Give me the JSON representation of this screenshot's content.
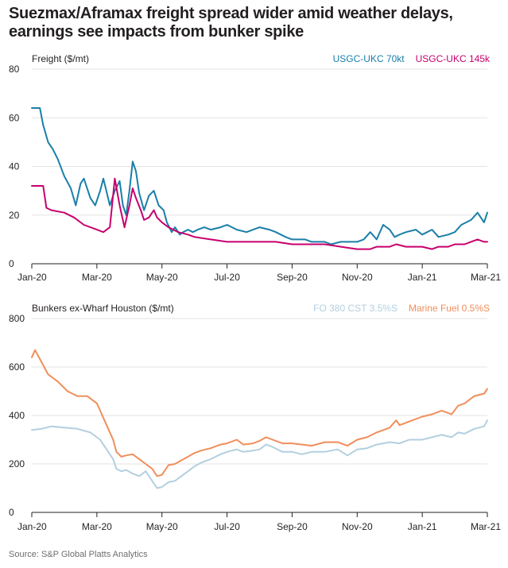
{
  "title_lines": [
    "Suezmax/Aframax freight spread wider amid weather delays,",
    "earnings see impacts from bunker spike"
  ],
  "source": "Source: S&P Global Platts Analytics",
  "chart_data": [
    {
      "type": "line",
      "ylabel": "Freight ($/mt)",
      "ylim": [
        0,
        80
      ],
      "yticks": [
        "0",
        "20",
        "40",
        "60",
        "80"
      ],
      "xlim": [
        0,
        14
      ],
      "xticks": [
        "Jan-20",
        "Mar-20",
        "May-20",
        "Jul-20",
        "Sep-20",
        "Nov-20",
        "Jan-21",
        "Mar-21"
      ],
      "grid": true,
      "legend": "top-right",
      "series": [
        {
          "name": "USGC-UKC  70kt",
          "color": "#1a7fa8",
          "x": [
            0,
            0.25,
            0.35,
            0.5,
            0.65,
            0.8,
            1.0,
            1.2,
            1.35,
            1.5,
            1.6,
            1.8,
            1.95,
            2.1,
            2.2,
            2.4,
            2.55,
            2.7,
            2.8,
            2.9,
            3.0,
            3.1,
            3.2,
            3.3,
            3.45,
            3.6,
            3.75,
            3.9,
            4.05,
            4.15,
            4.3,
            4.4,
            4.55,
            4.65,
            4.8,
            4.95,
            5.1,
            5.3,
            5.5,
            5.8,
            6.0,
            6.3,
            6.6,
            7.0,
            7.3,
            7.5,
            7.8,
            8.0,
            8.2,
            8.4,
            8.6,
            8.8,
            9.0,
            9.2,
            9.5,
            9.8,
            10.0,
            10.2,
            10.4,
            10.6,
            10.8,
            11.0,
            11.15,
            11.3,
            11.5,
            11.8,
            12.0,
            12.3,
            12.5,
            12.8,
            13.0,
            13.2,
            13.5,
            13.7,
            13.9,
            14.0
          ],
          "values": [
            64,
            64,
            57,
            50,
            47,
            43,
            36,
            31,
            24,
            33,
            35,
            27,
            24,
            30,
            35,
            24,
            30,
            34,
            24,
            20,
            30,
            42,
            38,
            29,
            22,
            28,
            30,
            24,
            22,
            17,
            13,
            15,
            12,
            13,
            14,
            13,
            14,
            15,
            14,
            15,
            16,
            14,
            13,
            15,
            14,
            13,
            11,
            10,
            10,
            10,
            9,
            9,
            9,
            8,
            9,
            9,
            9,
            10,
            13,
            10,
            16,
            14,
            11,
            12,
            13,
            14,
            12,
            14,
            11,
            12,
            13,
            16,
            18,
            21,
            17,
            21
          ]
        },
        {
          "name": "USGC-UKC 145k",
          "color": "#c7006e",
          "x": [
            0,
            0.35,
            0.45,
            0.6,
            1.0,
            1.3,
            1.6,
            2.0,
            2.2,
            2.4,
            2.55,
            2.7,
            2.85,
            3.0,
            3.1,
            3.2,
            3.35,
            3.45,
            3.6,
            3.75,
            3.85,
            4.0,
            4.2,
            4.5,
            4.8,
            5.0,
            5.5,
            6.0,
            6.5,
            7.0,
            7.5,
            8.0,
            8.5,
            9.0,
            9.5,
            10.0,
            10.2,
            10.4,
            10.6,
            11.0,
            11.2,
            11.5,
            12.0,
            12.3,
            12.5,
            12.8,
            13.0,
            13.3,
            13.5,
            13.7,
            13.9,
            14.0
          ],
          "values": [
            32,
            32,
            23,
            22,
            21,
            19,
            16,
            14,
            13,
            15,
            35,
            24,
            15,
            24,
            31,
            27,
            22,
            18,
            19,
            22,
            19,
            17,
            15,
            13,
            12,
            11,
            10,
            9,
            9,
            9,
            9,
            8,
            8,
            8,
            7,
            6,
            6,
            6,
            7,
            7,
            8,
            7,
            7,
            6,
            7,
            7,
            8,
            8,
            9,
            10,
            9,
            9
          ]
        }
      ]
    },
    {
      "type": "line",
      "ylabel": "Bunkers ex-Wharf Houston ($/mt)",
      "ylim": [
        0,
        800
      ],
      "yticks": [
        "0",
        "200",
        "400",
        "600",
        "800"
      ],
      "xlim": [
        0,
        14
      ],
      "xticks": [
        "Jan-20",
        "Mar-20",
        "May-20",
        "Jul-20",
        "Sep-20",
        "Nov-20",
        "Jan-21",
        "Mar-21"
      ],
      "grid": true,
      "legend": "top-right",
      "series": [
        {
          "name": "FO 380 CST 3.5%S",
          "color": "#b3cfe0",
          "x": [
            0,
            0.3,
            0.6,
            1.0,
            1.4,
            1.8,
            2.1,
            2.3,
            2.5,
            2.6,
            2.75,
            2.9,
            3.1,
            3.3,
            3.5,
            3.7,
            3.85,
            4.0,
            4.2,
            4.4,
            4.6,
            4.8,
            5.0,
            5.2,
            5.5,
            5.8,
            6.0,
            6.3,
            6.5,
            6.8,
            7.0,
            7.2,
            7.4,
            7.7,
            8.0,
            8.3,
            8.6,
            9.0,
            9.4,
            9.7,
            10.0,
            10.3,
            10.6,
            11.0,
            11.3,
            11.6,
            12.0,
            12.3,
            12.6,
            12.9,
            13.1,
            13.3,
            13.6,
            13.9,
            14.0
          ],
          "values": [
            340,
            345,
            355,
            350,
            345,
            330,
            300,
            260,
            220,
            180,
            170,
            175,
            160,
            150,
            170,
            130,
            100,
            105,
            125,
            130,
            150,
            170,
            190,
            205,
            220,
            240,
            250,
            260,
            250,
            255,
            260,
            280,
            270,
            250,
            250,
            240,
            250,
            250,
            260,
            235,
            260,
            265,
            280,
            290,
            285,
            300,
            300,
            310,
            320,
            310,
            330,
            325,
            345,
            355,
            380
          ]
        },
        {
          "name": "Marine Fuel 0.5%S",
          "color": "#f08e5a",
          "x": [
            0,
            0.1,
            0.3,
            0.5,
            0.8,
            1.1,
            1.4,
            1.7,
            2.0,
            2.1,
            2.3,
            2.5,
            2.6,
            2.75,
            2.9,
            3.1,
            3.3,
            3.5,
            3.7,
            3.85,
            4.0,
            4.2,
            4.4,
            4.6,
            4.8,
            5.0,
            5.2,
            5.5,
            5.8,
            6.0,
            6.3,
            6.5,
            6.8,
            7.0,
            7.2,
            7.4,
            7.7,
            8.0,
            8.3,
            8.6,
            9.0,
            9.4,
            9.7,
            10.0,
            10.3,
            10.6,
            11.0,
            11.2,
            11.3,
            11.6,
            12.0,
            12.3,
            12.6,
            12.9,
            13.1,
            13.3,
            13.6,
            13.9,
            14.0
          ],
          "values": [
            640,
            670,
            620,
            570,
            540,
            500,
            480,
            480,
            450,
            420,
            360,
            300,
            250,
            230,
            235,
            240,
            220,
            200,
            180,
            150,
            155,
            195,
            200,
            215,
            230,
            245,
            255,
            265,
            280,
            285,
            300,
            280,
            285,
            295,
            310,
            300,
            285,
            285,
            280,
            275,
            290,
            290,
            275,
            300,
            310,
            330,
            350,
            380,
            360,
            375,
            395,
            405,
            420,
            405,
            440,
            450,
            480,
            490,
            510
          ]
        }
      ]
    }
  ]
}
